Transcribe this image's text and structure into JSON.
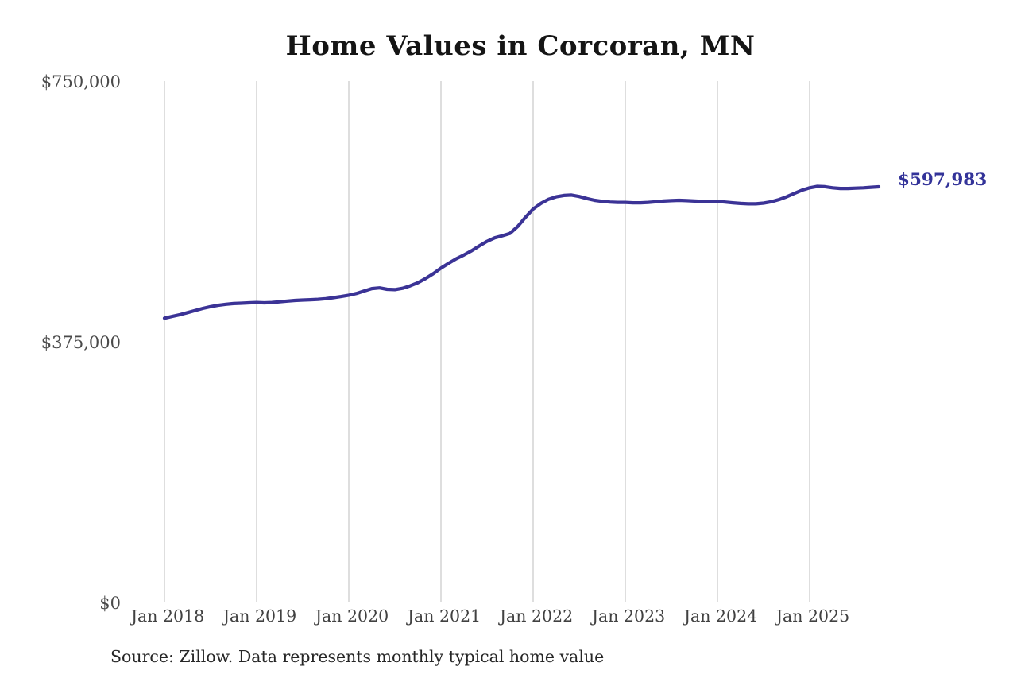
{
  "chart": {
    "title": "Home Values in Corcoran, MN",
    "latest_value_label": "$597,983",
    "source_note": "Source: Zillow. Data represents monthly typical home value",
    "colors": {
      "line": "#3b3396",
      "latest_value_text": "#333399",
      "grid": "#cdcdcd",
      "title_text": "#151515",
      "axis_text": "#4a4a4a",
      "source_text": "#262626",
      "background": "#ffffff"
    }
  },
  "chart_data": {
    "type": "line",
    "title": "Home Values in Corcoran, MN",
    "series_name": "Monthly typical home value",
    "xlabel": "",
    "ylabel": "",
    "ylim": [
      0,
      750000
    ],
    "grid": "vertical-only",
    "legend": "none",
    "latest_value": 597983,
    "y_ticks": [
      {
        "label": "$750,000",
        "value": 750000
      },
      {
        "label": "$375,000",
        "value": 375000
      },
      {
        "label": "$0",
        "value": 0
      }
    ],
    "x_tick_labels": [
      "Jan 2018",
      "Jan 2019",
      "Jan 2020",
      "Jan 2021",
      "Jan 2022",
      "Jan 2023",
      "Jan 2024",
      "Jan 2025"
    ],
    "x": [
      "2018-01",
      "2018-02",
      "2018-03",
      "2018-04",
      "2018-05",
      "2018-06",
      "2018-07",
      "2018-08",
      "2018-09",
      "2018-10",
      "2018-11",
      "2018-12",
      "2019-01",
      "2019-02",
      "2019-03",
      "2019-04",
      "2019-05",
      "2019-06",
      "2019-07",
      "2019-08",
      "2019-09",
      "2019-10",
      "2019-11",
      "2019-12",
      "2020-01",
      "2020-02",
      "2020-03",
      "2020-04",
      "2020-05",
      "2020-06",
      "2020-07",
      "2020-08",
      "2020-09",
      "2020-10",
      "2020-11",
      "2020-12",
      "2021-01",
      "2021-02",
      "2021-03",
      "2021-04",
      "2021-05",
      "2021-06",
      "2021-07",
      "2021-08",
      "2021-09",
      "2021-10",
      "2021-11",
      "2021-12",
      "2022-01",
      "2022-02",
      "2022-03",
      "2022-04",
      "2022-05",
      "2022-06",
      "2022-07",
      "2022-08",
      "2022-09",
      "2022-10",
      "2022-11",
      "2022-12",
      "2023-01",
      "2023-02",
      "2023-03",
      "2023-04",
      "2023-05",
      "2023-06",
      "2023-07",
      "2023-08",
      "2023-09",
      "2023-10",
      "2023-11",
      "2023-12",
      "2024-01",
      "2024-02",
      "2024-03",
      "2024-04",
      "2024-05",
      "2024-06",
      "2024-07",
      "2024-08",
      "2024-09",
      "2024-10",
      "2024-11",
      "2024-12",
      "2025-01",
      "2025-02",
      "2025-03",
      "2025-04",
      "2025-05",
      "2025-06",
      "2025-07",
      "2025-08",
      "2025-09",
      "2025-10"
    ],
    "values": [
      409000,
      411500,
      414000,
      417000,
      420000,
      423000,
      425500,
      427500,
      429000,
      430000,
      430500,
      431000,
      431500,
      431000,
      431500,
      432500,
      433500,
      434500,
      435000,
      435500,
      436000,
      437000,
      438500,
      440000,
      442000,
      444500,
      448000,
      451500,
      452500,
      450500,
      450000,
      452000,
      455500,
      460000,
      466000,
      473000,
      481000,
      488000,
      494500,
      500000,
      506000,
      513000,
      519500,
      524500,
      527500,
      531000,
      541000,
      554000,
      566000,
      574000,
      580000,
      583500,
      585500,
      586000,
      584000,
      581000,
      578500,
      577000,
      576000,
      575500,
      575500,
      575000,
      575000,
      575500,
      576500,
      577500,
      578000,
      578500,
      578000,
      577500,
      577000,
      577000,
      577000,
      576000,
      575000,
      574000,
      573500,
      573500,
      574500,
      576500,
      579500,
      583500,
      588500,
      593000,
      596500,
      598500,
      598000,
      596500,
      595500,
      595500,
      596000,
      596500,
      597200,
      597983
    ]
  }
}
